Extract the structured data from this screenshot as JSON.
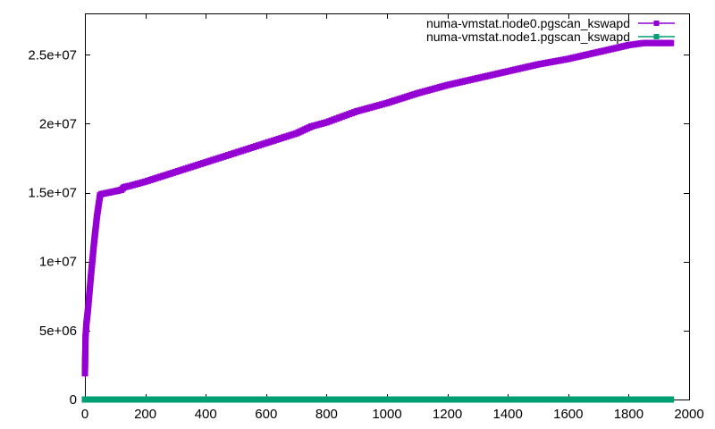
{
  "chart_data": {
    "type": "line",
    "title": "",
    "xlabel": "",
    "ylabel": "",
    "xlim": [
      0,
      2000
    ],
    "ylim": [
      0,
      28000000
    ],
    "x_ticks": [
      0,
      200,
      400,
      600,
      800,
      1000,
      1200,
      1400,
      1600,
      1800,
      2000
    ],
    "x_tick_labels": [
      "0",
      "200",
      "400",
      "600",
      "800",
      "1000",
      "1200",
      "1400",
      "1600",
      "1800",
      "2000"
    ],
    "y_ticks": [
      0,
      5000000,
      10000000,
      15000000,
      20000000,
      25000000
    ],
    "y_tick_labels": [
      "0",
      "5e+06",
      "1e+07",
      "1.5e+07",
      "2e+07",
      "2.5e+07"
    ],
    "grid": false,
    "legend_position": "top-right",
    "series": [
      {
        "name": "numa-vmstat.node0.pgscan_kswapd",
        "color": "#9400d3",
        "marker": "square",
        "x": [
          0,
          2,
          5,
          10,
          20,
          30,
          40,
          50,
          55,
          100,
          120,
          130,
          150,
          200,
          300,
          400,
          500,
          600,
          700,
          750,
          800,
          850,
          900,
          1000,
          1100,
          1200,
          1300,
          1400,
          1500,
          1600,
          1700,
          1800,
          1850,
          1900,
          1940
        ],
        "values": [
          1900000,
          4500000,
          5500000,
          6500000,
          9000000,
          11300000,
          13300000,
          14800000,
          14900000,
          15100000,
          15200000,
          15400000,
          15500000,
          15800000,
          16500000,
          17200000,
          17900000,
          18600000,
          19300000,
          19800000,
          20100000,
          20500000,
          20900000,
          21500000,
          22200000,
          22800000,
          23300000,
          23800000,
          24300000,
          24700000,
          25200000,
          25700000,
          25850000,
          25850000,
          25850000
        ]
      },
      {
        "name": "numa-vmstat.node1.pgscan_kswapd",
        "color": "#009e73",
        "marker": "square",
        "x": [
          0,
          200,
          400,
          600,
          800,
          1000,
          1200,
          1400,
          1600,
          1800,
          1940
        ],
        "values": [
          0,
          0,
          0,
          0,
          0,
          0,
          0,
          0,
          0,
          0,
          0
        ]
      }
    ]
  }
}
